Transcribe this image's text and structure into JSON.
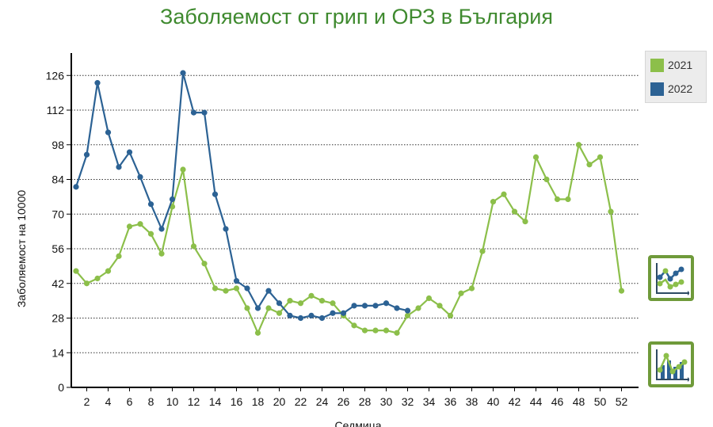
{
  "title": "Заболяемост от грип и ОРЗ в България",
  "colors": {
    "series_2021": "#8cbf4a",
    "series_2022": "#2c6294",
    "title": "#3f8a2f",
    "button_border": "#6f9a3a"
  },
  "controls": {
    "line_chart_icon": "line-chart-icon",
    "bar_line_chart_icon": "bar-line-chart-icon"
  },
  "chart_data": {
    "type": "line",
    "title": "Заболяемост от грип и ОРЗ в България",
    "xlabel": "Седмица",
    "ylabel": "Заболяемост на 10000",
    "xlim": [
      1,
      52
    ],
    "ylim": [
      0,
      136
    ],
    "xticks": [
      2,
      4,
      6,
      8,
      10,
      12,
      14,
      16,
      18,
      20,
      22,
      24,
      26,
      28,
      30,
      32,
      34,
      36,
      38,
      40,
      42,
      44,
      46,
      48,
      50,
      52
    ],
    "yticks": [
      0,
      14,
      28,
      42,
      56,
      70,
      84,
      98,
      112,
      126
    ],
    "grid": "horizontal dotted",
    "legend_position": "top-right",
    "series": [
      {
        "name": "2021",
        "x": [
          1,
          2,
          3,
          4,
          5,
          6,
          7,
          8,
          9,
          10,
          11,
          12,
          13,
          14,
          15,
          16,
          17,
          18,
          19,
          20,
          21,
          22,
          23,
          24,
          25,
          26,
          27,
          28,
          29,
          30,
          31,
          32,
          33,
          34,
          35,
          36,
          37,
          38,
          39,
          40,
          41,
          42,
          43,
          44,
          45,
          46,
          47,
          48,
          49,
          50,
          51,
          52
        ],
        "values": [
          47,
          42,
          44,
          47,
          53,
          65,
          66,
          62,
          54,
          73,
          88,
          57,
          50,
          40,
          39,
          40,
          32,
          22,
          32,
          30,
          35,
          34,
          37,
          35,
          34,
          29,
          25,
          23,
          23,
          23,
          22,
          29,
          32,
          36,
          33,
          29,
          38,
          40,
          55,
          75,
          78,
          71,
          67,
          93,
          84,
          76,
          76,
          98,
          90,
          93,
          71,
          39
        ]
      },
      {
        "name": "2022",
        "x": [
          1,
          2,
          3,
          4,
          5,
          6,
          7,
          8,
          9,
          10,
          11,
          12,
          13,
          14,
          15,
          16,
          17,
          18,
          19,
          20,
          21,
          22,
          23,
          24,
          25,
          26,
          27,
          28,
          29,
          30,
          31,
          32
        ],
        "values": [
          81,
          94,
          123,
          103,
          89,
          95,
          85,
          74,
          64,
          76,
          127,
          111,
          111,
          78,
          64,
          43,
          40,
          32,
          39,
          34,
          29,
          28,
          29,
          28,
          30,
          30,
          33,
          33,
          33,
          34,
          32,
          31
        ]
      }
    ]
  }
}
